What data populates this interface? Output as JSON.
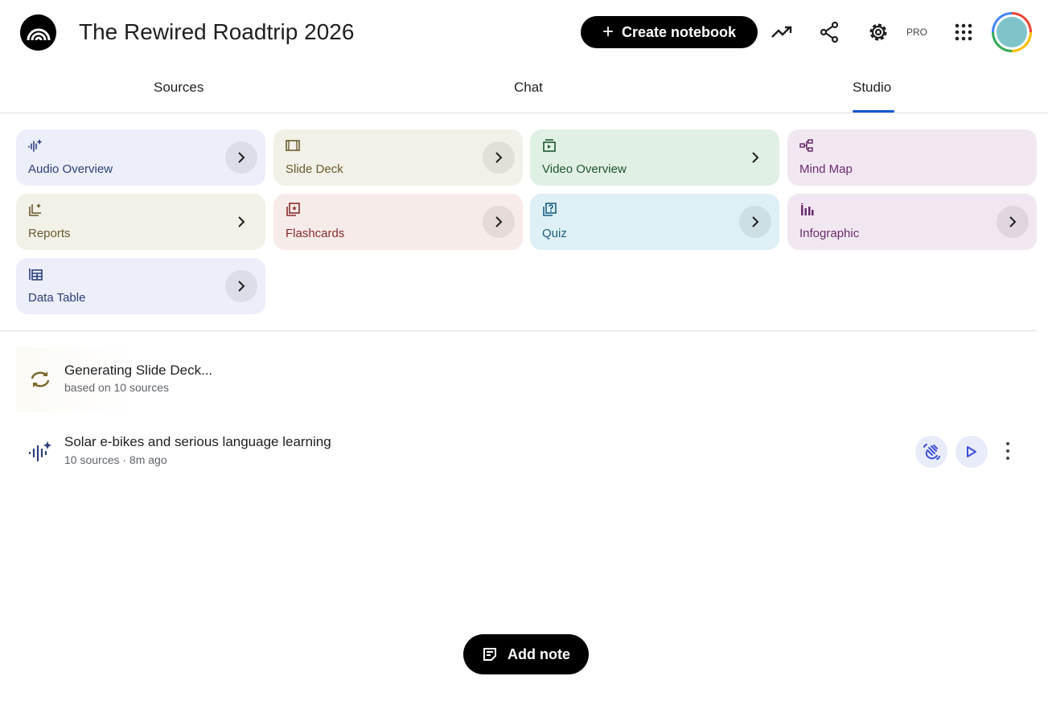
{
  "header": {
    "title": "The Rewired Roadtrip 2026",
    "create_label": "Create notebook",
    "pro_label": "PRO",
    "icons": [
      "analytics-icon",
      "share-icon",
      "settings-icon",
      "apps-grid-icon"
    ]
  },
  "tabs": [
    {
      "label": "Sources",
      "active": false
    },
    {
      "label": "Chat",
      "active": false
    },
    {
      "label": "Studio",
      "active": true
    }
  ],
  "studio_tools": [
    {
      "label": "Audio Overview",
      "icon": "audio-waveform-sparkle-icon",
      "bg": "#eceef9",
      "fg": "#2b3f7a"
    },
    {
      "label": "Slide Deck",
      "icon": "slides-icon",
      "bg": "#f2f1e8",
      "fg": "#6b5a2e"
    },
    {
      "label": "Video Overview",
      "icon": "video-icon",
      "bg": "#e1f0e4",
      "fg": "#1e5631"
    },
    {
      "label": "Mind Map",
      "icon": "mind-map-icon",
      "bg": "#f1e7f1",
      "fg": "#6b2c6f"
    },
    {
      "label": "Reports",
      "icon": "reports-icon",
      "bg": "#f2f1e8",
      "fg": "#6b5a2e"
    },
    {
      "label": "Flashcards",
      "icon": "flashcards-icon",
      "bg": "#f7ebe9",
      "fg": "#8a2c2c"
    },
    {
      "label": "Quiz",
      "icon": "quiz-icon",
      "bg": "#def0f5",
      "fg": "#1a5f80"
    },
    {
      "label": "Infographic",
      "icon": "infographic-icon",
      "bg": "#f1e7f1",
      "fg": "#6b2c6f"
    },
    {
      "label": "Data Table",
      "icon": "data-table-icon",
      "bg": "#eceef9",
      "fg": "#2b3f7a"
    }
  ],
  "outputs": [
    {
      "title": "Generating Slide Deck...",
      "subtitle": "based on 10 sources",
      "icon": "sync-icon"
    },
    {
      "title": "Solar e-bikes and serious language learning",
      "subtitle": "10 sources · 8m ago",
      "icon": "audio-waveform-sparkle-icon"
    }
  ],
  "add_note_label": "Add note"
}
